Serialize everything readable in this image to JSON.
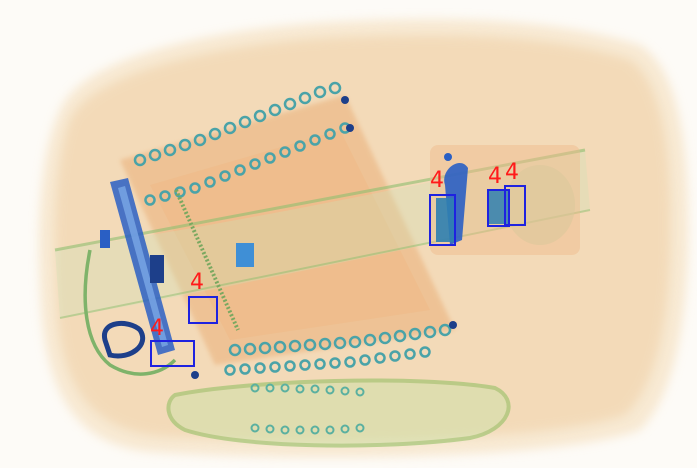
{
  "detections": [
    {
      "label": "4"
    },
    {
      "label": "4"
    },
    {
      "label": "4"
    },
    {
      "label": "4"
    },
    {
      "label": "4"
    }
  ],
  "colors": {
    "box": "#1e22e0",
    "label": "#ff1a1a",
    "organic": "#e9a86a",
    "inorganic": "#7fb36a",
    "metal": "#2a5fc4"
  },
  "icons": [
    "xray-luggage-image"
  ]
}
